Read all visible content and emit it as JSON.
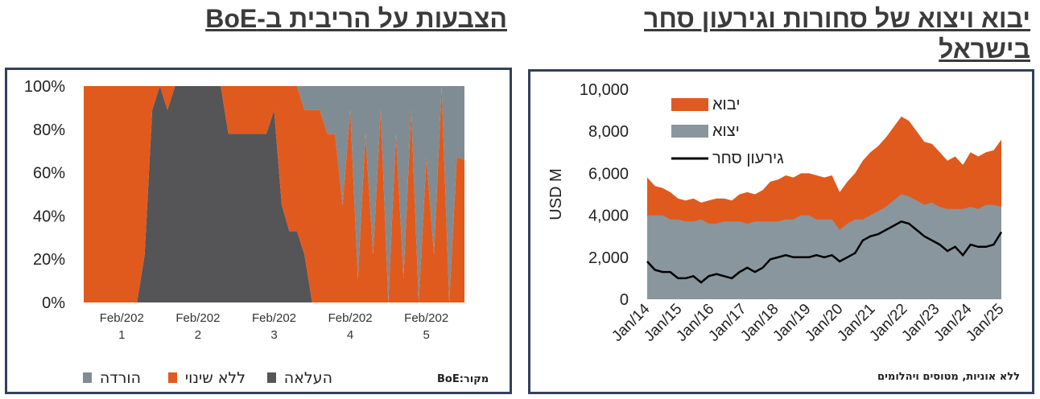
{
  "titles": {
    "left": "הצבעות על הריבית ב-BoE",
    "right": "יבוא ויצוא של סחורות וגירעון סחר בישראל"
  },
  "left_panel": {
    "source": "מקור:BoE",
    "legend": [
      {
        "label": "העלאה",
        "color": "#555558"
      },
      {
        "label": "ללא שינוי",
        "color": "#e05a1e"
      },
      {
        "label": "הורדה",
        "color": "#7f8c93"
      }
    ]
  },
  "right_panel": {
    "note": "ללא אוניות, מטוסים ויהלומים",
    "legend": [
      {
        "label": "יבוא",
        "color": "#e05a1e"
      },
      {
        "label": "יצוא",
        "color": "#8a969d"
      },
      {
        "label": "גירעון סחר",
        "color": "#000000"
      }
    ]
  },
  "chart_data": [
    {
      "type": "area",
      "stacked": true,
      "title": "הצבעות על הריבית ב-BoE",
      "x_tick_labels": [
        [
          "Feb/202",
          "1"
        ],
        [
          "Feb/202",
          "2"
        ],
        [
          "Feb/202",
          "3"
        ],
        [
          "Feb/202",
          "4"
        ],
        [
          "Feb/202",
          "5"
        ]
      ],
      "y_ticks": [
        "0%",
        "20%",
        "40%",
        "60%",
        "80%",
        "100%"
      ],
      "ylim": [
        0,
        100
      ],
      "x": [
        0,
        0.5,
        1,
        1.5,
        2,
        2.5,
        3,
        3.5,
        4,
        4.5,
        5,
        5.5,
        6,
        6.5,
        7,
        7.5,
        8,
        8.5,
        9,
        9.5,
        10,
        10.5,
        11,
        11.5,
        12,
        12.5,
        13,
        13.5,
        14,
        14.5,
        15,
        15.5,
        16,
        16.5,
        17,
        17.5,
        18,
        18.5,
        19,
        19.5,
        20,
        20.5,
        21,
        21.5,
        22,
        22.5,
        23,
        23.5,
        24,
        24.5,
        25
      ],
      "series": [
        {
          "name": "העלאה",
          "color": "#555558",
          "values": [
            0,
            0,
            0,
            0,
            0,
            0,
            0,
            0,
            22,
            89,
            100,
            89,
            100,
            100,
            100,
            100,
            100,
            100,
            100,
            78,
            78,
            78,
            78,
            78,
            78,
            89,
            45,
            33,
            33,
            22,
            0,
            0,
            0,
            0,
            0,
            0,
            0,
            0,
            0,
            0,
            0,
            0,
            0,
            0,
            0,
            0,
            0,
            0,
            0,
            0,
            0
          ]
        },
        {
          "name": "ללא שינוי",
          "color": "#e05a1e",
          "values": [
            100,
            100,
            100,
            100,
            100,
            100,
            100,
            100,
            78,
            11,
            0,
            11,
            0,
            0,
            0,
            0,
            0,
            0,
            0,
            22,
            22,
            22,
            22,
            22,
            22,
            11,
            55,
            67,
            67,
            67,
            89,
            89,
            78,
            78,
            45,
            89,
            11,
            78,
            22,
            89,
            0,
            78,
            11,
            89,
            0,
            67,
            22,
            100,
            0,
            67,
            66
          ]
        },
        {
          "name": "הורדה",
          "color": "#7f8c93",
          "values": [
            0,
            0,
            0,
            0,
            0,
            0,
            0,
            0,
            0,
            0,
            0,
            0,
            0,
            0,
            0,
            0,
            0,
            0,
            0,
            0,
            0,
            0,
            0,
            0,
            0,
            0,
            0,
            0,
            0,
            11,
            11,
            11,
            22,
            22,
            55,
            11,
            89,
            22,
            78,
            11,
            100,
            22,
            89,
            11,
            100,
            33,
            78,
            0,
            100,
            33,
            34
          ]
        }
      ]
    },
    {
      "type": "area",
      "title": "יבוא ויצוא של סחורות וגירעון סחר בישראל",
      "ylabel": "USD M",
      "ylim": [
        0,
        10000
      ],
      "y_ticks": [
        "0",
        "2,000",
        "4,000",
        "6,000",
        "8,000",
        "10,000"
      ],
      "x_tick_labels": [
        "Jan/14",
        "Jan/15",
        "Jan/16",
        "Jan/17",
        "Jan/18",
        "Jan/19",
        "Jan/20",
        "Jan/21",
        "Jan/22",
        "Jan/23",
        "Jan/24",
        "Jan/25"
      ],
      "x": [
        "Jan/14",
        "Apr/14",
        "Jul/14",
        "Oct/14",
        "Jan/15",
        "Apr/15",
        "Jul/15",
        "Oct/15",
        "Jan/16",
        "Apr/16",
        "Jul/16",
        "Oct/16",
        "Jan/17",
        "Apr/17",
        "Jul/17",
        "Oct/17",
        "Jan/18",
        "Apr/18",
        "Jul/18",
        "Oct/18",
        "Jan/19",
        "Apr/19",
        "Jul/19",
        "Oct/19",
        "Jan/20",
        "Apr/20",
        "Jul/20",
        "Oct/20",
        "Jan/21",
        "Apr/21",
        "Jul/21",
        "Oct/21",
        "Jan/22",
        "Apr/22",
        "Jul/22",
        "Oct/22",
        "Jan/23",
        "Apr/23",
        "Jul/23",
        "Oct/23",
        "Jan/24",
        "Apr/24",
        "Jul/24",
        "Oct/24",
        "Jan/25",
        "Apr/25",
        "Jul/25"
      ],
      "series": [
        {
          "name": "יבוא",
          "color": "#e05a1e",
          "values": [
            5800,
            5400,
            5300,
            5100,
            4800,
            4700,
            4800,
            4600,
            4700,
            4800,
            4800,
            4700,
            5000,
            5100,
            5000,
            5200,
            5600,
            5700,
            5900,
            5800,
            6000,
            6000,
            5900,
            5800,
            5900,
            5100,
            5600,
            6000,
            6600,
            7000,
            7300,
            7700,
            8200,
            8700,
            8500,
            8000,
            7500,
            7400,
            7000,
            6600,
            6800,
            6400,
            7000,
            6800,
            7000,
            7100,
            7600
          ]
        },
        {
          "name": "יצוא",
          "color": "#8a969d",
          "values": [
            4000,
            4000,
            4000,
            3800,
            3800,
            3700,
            3700,
            3800,
            3600,
            3600,
            3700,
            3700,
            3700,
            3600,
            3700,
            3700,
            3700,
            3700,
            3800,
            3800,
            4000,
            4000,
            3800,
            3800,
            3800,
            3300,
            3600,
            3800,
            3800,
            4000,
            4200,
            4400,
            4700,
            5000,
            4900,
            4700,
            4500,
            4600,
            4400,
            4300,
            4300,
            4300,
            4400,
            4300,
            4500,
            4500,
            4400
          ]
        },
        {
          "name": "גירעון סחר",
          "color": "#000000",
          "values": [
            1800,
            1400,
            1300,
            1300,
            1000,
            1000,
            1100,
            800,
            1100,
            1200,
            1100,
            1000,
            1300,
            1500,
            1300,
            1500,
            1900,
            2000,
            2100,
            2000,
            2000,
            2000,
            2100,
            2000,
            2100,
            1800,
            2000,
            2200,
            2800,
            3000,
            3100,
            3300,
            3500,
            3700,
            3600,
            3300,
            3000,
            2800,
            2600,
            2300,
            2500,
            2100,
            2600,
            2500,
            2500,
            2600,
            3200
          ]
        }
      ]
    }
  ]
}
